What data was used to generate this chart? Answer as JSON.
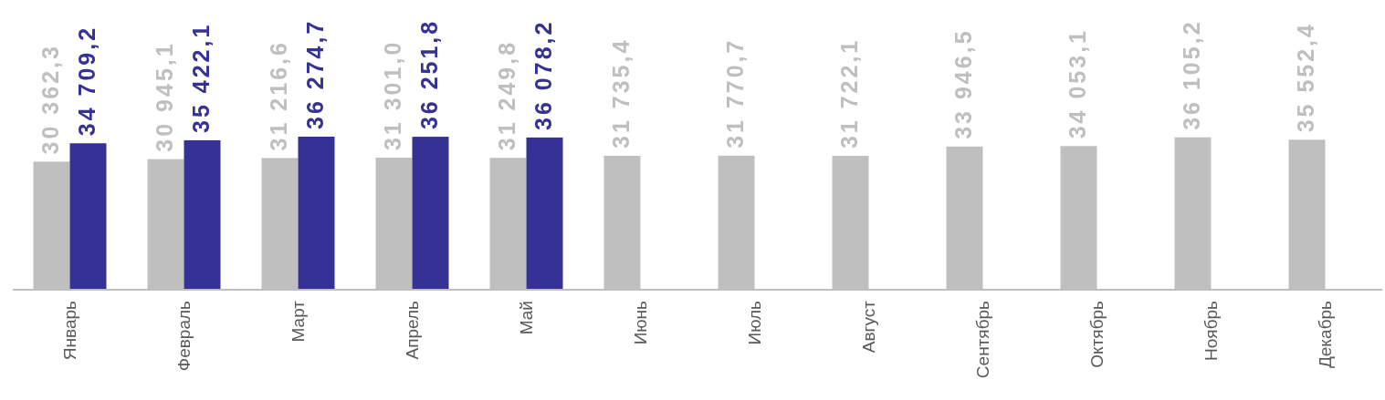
{
  "chart_data": {
    "type": "bar",
    "categories": [
      "Январь",
      "Февраль",
      "Март",
      "Апрель",
      "Май",
      "Июнь",
      "Июль",
      "Август",
      "Сентябрь",
      "Октябрь",
      "Ноябрь",
      "Декабрь"
    ],
    "series": [
      {
        "color": "#bfbfbf",
        "values": [
          30362.3,
          30945.1,
          31216.6,
          31301.0,
          31249.8,
          31735.4,
          31770.7,
          31722.1,
          33946.5,
          34053.1,
          36105.2,
          35552.4
        ],
        "value_labels": [
          "30 362,3",
          "30 945,1",
          "31 216,6",
          "31 301,0",
          "31 249,8",
          "31 735,4",
          "31 770,7",
          "31 722,1",
          "33 946,5",
          "34 053,1",
          "36 105,2",
          "35 552,4"
        ]
      },
      {
        "color": "#363295",
        "values": [
          34709.2,
          35422.1,
          36274.7,
          36251.8,
          36078.2,
          null,
          null,
          null,
          null,
          null,
          null,
          null
        ],
        "value_labels": [
          "34 709,2",
          "35 422,1",
          "36 274,7",
          "36 251,8",
          "36 078,2",
          null,
          null,
          null,
          null,
          null,
          null,
          null
        ]
      }
    ]
  }
}
